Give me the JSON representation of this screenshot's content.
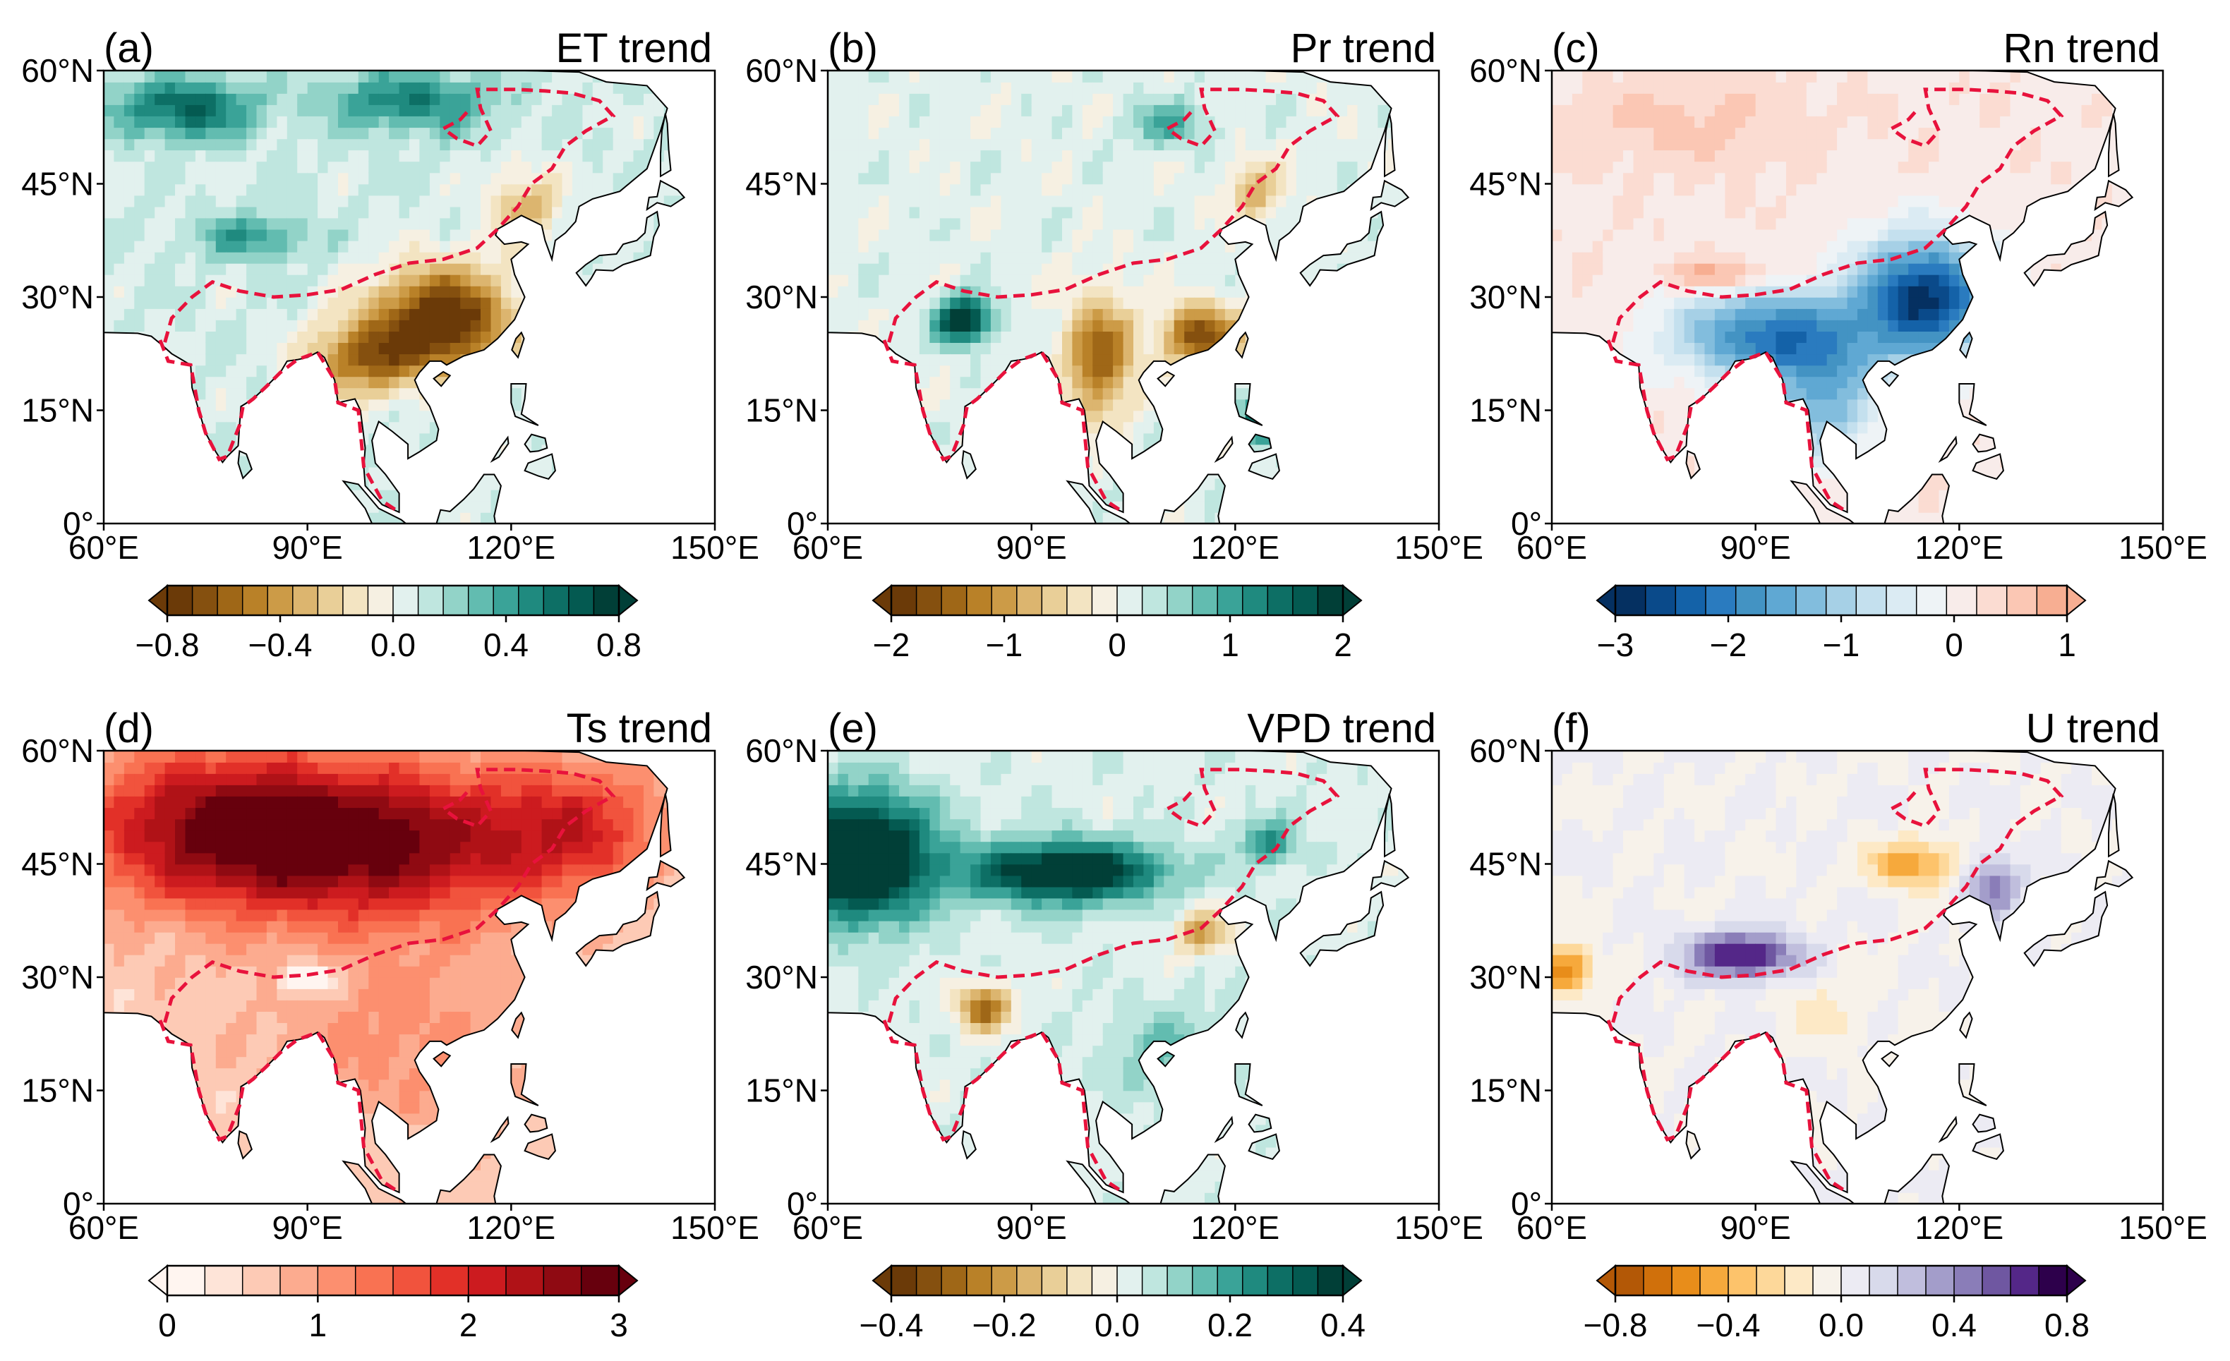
{
  "figure": {
    "x_tick_labels": [
      "60°E",
      "90°E",
      "120°E",
      "150°E"
    ],
    "y_tick_labels": [
      "0°",
      "15°N",
      "30°N",
      "45°N",
      "60°N"
    ]
  },
  "chart_data": [
    {
      "type": "heatmap",
      "panel_label": "(a)",
      "title": "ET trend",
      "xlim": [
        60,
        150
      ],
      "ylim": [
        0,
        60
      ],
      "colorbar": {
        "range": [
          -0.8,
          0.8
        ],
        "ticks": [
          "−0.8",
          "−0.4",
          "0.0",
          "0.4",
          "0.8"
        ],
        "tick_values": [
          -0.8,
          -0.4,
          0.0,
          0.4,
          0.8
        ],
        "colors": [
          "#6b3a08",
          "#85500f",
          "#9f6717",
          "#b98128",
          "#cc9b47",
          "#dcb56f",
          "#e9cf98",
          "#f3e4c2",
          "#f6f0e2",
          "#e2f1ee",
          "#bfe6df",
          "#92d3c8",
          "#62bcb0",
          "#3aa398",
          "#1f8a7f",
          "#0d6f65",
          "#045a51",
          "#013f37"
        ],
        "extend": "both"
      },
      "map_pattern": "ET"
    },
    {
      "type": "heatmap",
      "panel_label": "(b)",
      "title": "Pr trend",
      "xlim": [
        60,
        150
      ],
      "ylim": [
        0,
        60
      ],
      "colorbar": {
        "range": [
          -2,
          2
        ],
        "ticks": [
          "−2",
          "−1",
          "0",
          "1",
          "2"
        ],
        "tick_values": [
          -2,
          -1,
          0,
          1,
          2
        ],
        "colors": [
          "#6b3a08",
          "#85500f",
          "#9f6717",
          "#b98128",
          "#cc9b47",
          "#dcb56f",
          "#e9cf98",
          "#f3e4c2",
          "#f6f0e2",
          "#e2f1ee",
          "#bfe6df",
          "#92d3c8",
          "#62bcb0",
          "#3aa398",
          "#1f8a7f",
          "#0d6f65",
          "#045a51",
          "#013f37"
        ],
        "extend": "both"
      },
      "map_pattern": "Pr"
    },
    {
      "type": "heatmap",
      "panel_label": "(c)",
      "title": "Rn trend",
      "xlim": [
        60,
        150
      ],
      "ylim": [
        0,
        60
      ],
      "colorbar": {
        "range": [
          -3,
          1
        ],
        "ticks": [
          "−3",
          "−2",
          "−1",
          "0",
          "1"
        ],
        "tick_values": [
          -3,
          -2,
          -1,
          0,
          1
        ],
        "colors": [
          "#053061",
          "#0a4a8a",
          "#1462a8",
          "#2a7bbf",
          "#4393c3",
          "#5fa8d3",
          "#82bddd",
          "#a6d0e6",
          "#c4e0ee",
          "#dbebf3",
          "#eef3f6",
          "#f8ecea",
          "#fbdcd2",
          "#fbc7b4",
          "#f7ae92"
        ],
        "extend": "both"
      },
      "map_pattern": "Rn"
    },
    {
      "type": "heatmap",
      "panel_label": "(d)",
      "title": "Ts trend",
      "xlim": [
        60,
        150
      ],
      "ylim": [
        0,
        60
      ],
      "colorbar": {
        "range": [
          0,
          3
        ],
        "ticks": [
          "0",
          "1",
          "2",
          "3"
        ],
        "tick_values": [
          0,
          1,
          2,
          3
        ],
        "colors": [
          "#fff5f0",
          "#fee4d8",
          "#fdcab5",
          "#fcab8f",
          "#fc8f6f",
          "#f97252",
          "#f1533d",
          "#e23028",
          "#cc1b1f",
          "#b01217",
          "#8f0a12",
          "#67000d"
        ],
        "extend": "both"
      },
      "map_pattern": "Ts"
    },
    {
      "type": "heatmap",
      "panel_label": "(e)",
      "title": "VPD trend",
      "xlim": [
        60,
        150
      ],
      "ylim": [
        0,
        60
      ],
      "colorbar": {
        "range": [
          -0.4,
          0.4
        ],
        "ticks": [
          "−0.4",
          "−0.2",
          "0.0",
          "0.2",
          "0.4"
        ],
        "tick_values": [
          -0.4,
          -0.2,
          0.0,
          0.2,
          0.4
        ],
        "colors": [
          "#6b3a08",
          "#85500f",
          "#9f6717",
          "#b98128",
          "#cc9b47",
          "#dcb56f",
          "#e9cf98",
          "#f3e4c2",
          "#f6f0e2",
          "#e2f1ee",
          "#bfe6df",
          "#92d3c8",
          "#62bcb0",
          "#3aa398",
          "#1f8a7f",
          "#0d6f65",
          "#045a51",
          "#013f37"
        ],
        "extend": "both"
      },
      "map_pattern": "VPD"
    },
    {
      "type": "heatmap",
      "panel_label": "(f)",
      "title": "U trend",
      "xlim": [
        60,
        150
      ],
      "ylim": [
        0,
        60
      ],
      "colorbar": {
        "range": [
          -0.8,
          0.8
        ],
        "ticks": [
          "−0.8",
          "−0.4",
          "0.0",
          "0.4",
          "0.8"
        ],
        "tick_values": [
          -0.8,
          -0.4,
          0.0,
          0.4,
          0.8
        ],
        "colors": [
          "#b35806",
          "#d0700b",
          "#e88d1a",
          "#f6a93c",
          "#fdc36b",
          "#fdd89a",
          "#fde9c6",
          "#f7f2ea",
          "#ecebf3",
          "#d8daeb",
          "#c0bedd",
          "#a39dca",
          "#8a7db8",
          "#6f57a1",
          "#542788",
          "#2d004b"
        ],
        "extend": "both"
      },
      "map_pattern": "U"
    }
  ]
}
